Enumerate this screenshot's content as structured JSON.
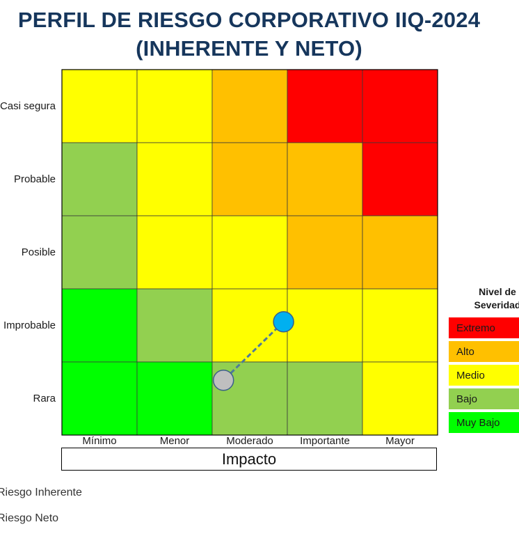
{
  "title": {
    "line1": "PERFIL DE RIESGO CORPORATIVO IIQ-2024",
    "line2": "(INHERENTE Y NETO)"
  },
  "colors": {
    "extremo": "#ff0000",
    "alto": "#ffc000",
    "medio": "#ffff00",
    "bajo": "#92d050",
    "muy_bajo": "#00ff00",
    "inherente_marker": "#00b0f0",
    "neto_marker": "#bfbfbf",
    "connector": "#4f7a9a",
    "title": "#16365c"
  },
  "chart_data": {
    "type": "heatmap",
    "title": "PERFIL DE RIESGO CORPORATIVO IIQ-2024 (INHERENTE Y NETO)",
    "xlabel": "Impacto",
    "ylabel": "",
    "x_categories": [
      "Mínimo",
      "Menor",
      "Moderado",
      "Importante",
      "Mayor"
    ],
    "y_categories": [
      "Casi segura",
      "Probable",
      "Posible",
      "Improbable",
      "Rara"
    ],
    "cells": [
      [
        "medio",
        "medio",
        "alto",
        "extremo",
        "extremo"
      ],
      [
        "bajo",
        "medio",
        "alto",
        "alto",
        "extremo"
      ],
      [
        "bajo",
        "medio",
        "medio",
        "alto",
        "alto"
      ],
      [
        "muy_bajo",
        "bajo",
        "medio",
        "medio",
        "medio"
      ],
      [
        "muy_bajo",
        "muy_bajo",
        "bajo",
        "bajo",
        "medio"
      ]
    ],
    "points": [
      {
        "name": "Riesgo Inherente",
        "impact": 3.45,
        "probability": 2.05,
        "color": "inherente"
      },
      {
        "name": "Riesgo Neto",
        "impact": 2.65,
        "probability": 1.25,
        "color": "neto"
      }
    ],
    "legend": {
      "title_line1": "Nivel de",
      "title_line2": "Severidad",
      "placement": "right",
      "items": [
        {
          "key": "extremo",
          "label": "Extremo"
        },
        {
          "key": "alto",
          "label": "Alto"
        },
        {
          "key": "medio",
          "label": "Medio"
        },
        {
          "key": "bajo",
          "label": "Bajo"
        },
        {
          "key": "muy_bajo",
          "label": "Muy Bajo"
        }
      ]
    },
    "series_labels": [
      "Riesgo Inherente",
      "Riesgo Neto"
    ]
  }
}
